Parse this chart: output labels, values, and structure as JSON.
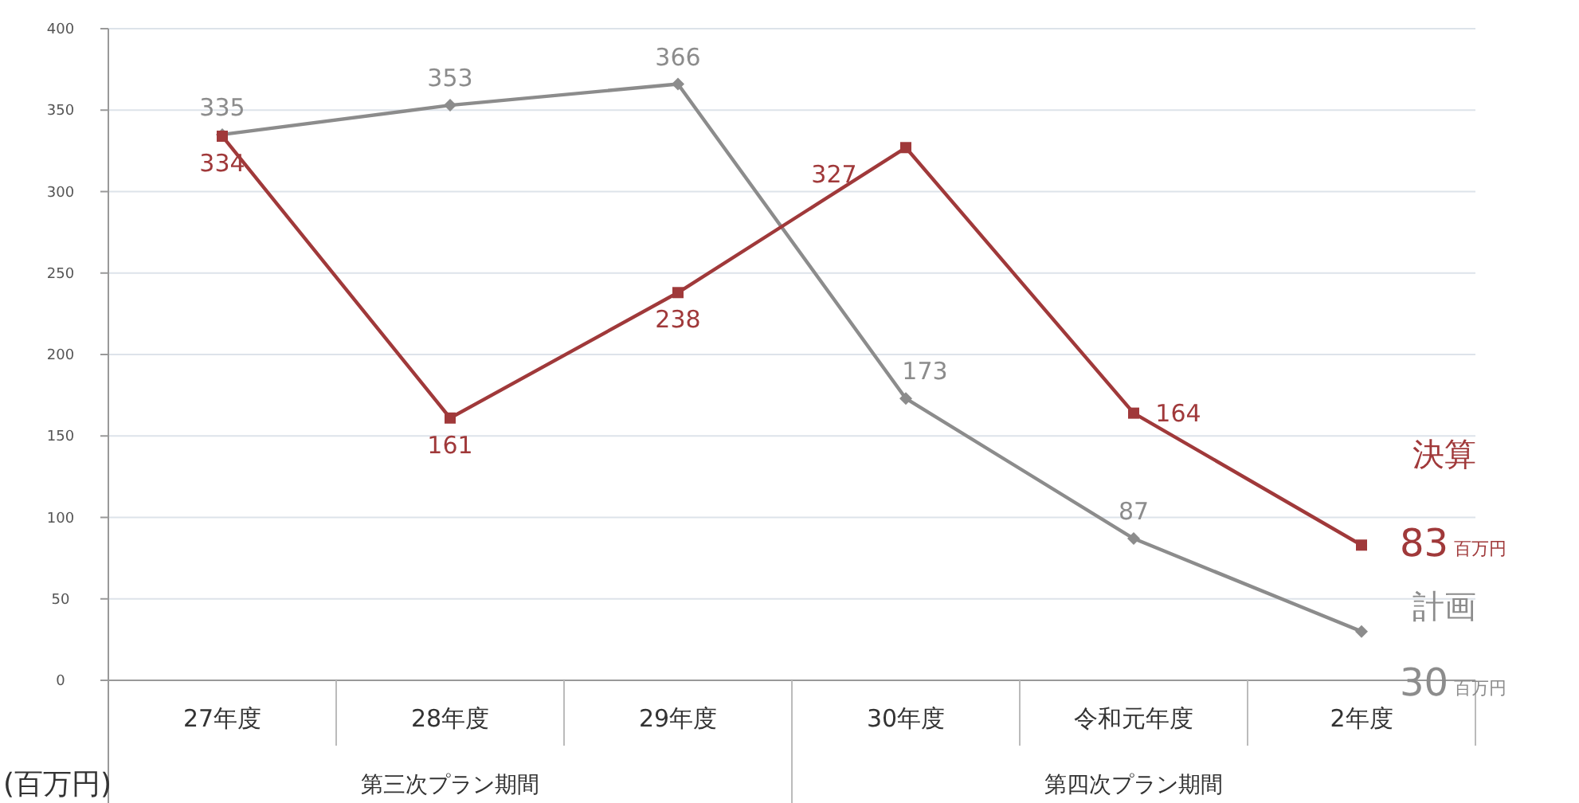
{
  "chart_data": {
    "type": "line",
    "ylabel": "(百万円)",
    "categories": [
      "27年度",
      "28年度",
      "29年度",
      "30年度",
      "令和元年度",
      "2年度"
    ],
    "series": [
      {
        "name": "計画",
        "color": "#8c8c8c",
        "marker": "diamond",
        "values": [
          335,
          353,
          366,
          173,
          87,
          30
        ]
      },
      {
        "name": "決算",
        "color": "#a0393a",
        "marker": "square",
        "values": [
          334,
          161,
          238,
          327,
          164,
          83
        ]
      }
    ],
    "ylim": [
      0,
      400
    ],
    "yticks": [
      0,
      50,
      100,
      150,
      200,
      250,
      300,
      350,
      400
    ],
    "grid": "y",
    "data_labels": true,
    "annotations": [
      "百万円",
      "百万円",
      "第三次プラン期間",
      "第四次プラン期間"
    ]
  }
}
